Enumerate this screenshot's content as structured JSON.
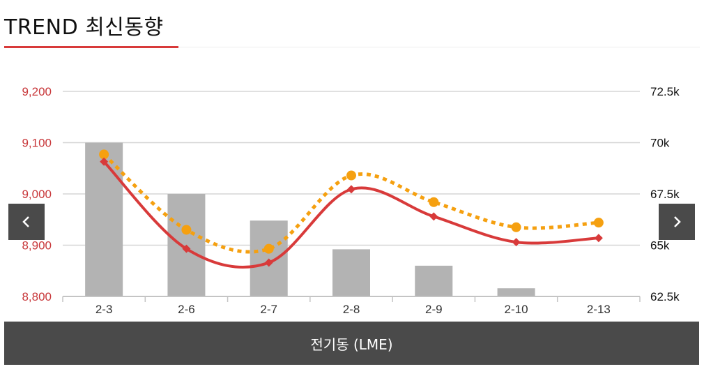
{
  "header": {
    "title": "TREND 최신동향"
  },
  "footer": {
    "label": "전기동 (LME)"
  },
  "colors": {
    "accent": "#d83a3a",
    "line_primary": "#d83a3a",
    "line_secondary": "#f5a010",
    "bar": "#b3b3b3",
    "nav": "#4a4a4a"
  },
  "icons": {
    "prev": "chevron-left-icon",
    "next": "chevron-right-icon"
  },
  "chart_data": {
    "type": "bar",
    "categories": [
      "2-3",
      "2-6",
      "2-7",
      "2-8",
      "2-9",
      "2-10",
      "2-13"
    ],
    "left_axis": {
      "ticks": [
        "9,200",
        "9,100",
        "9,000",
        "8,900",
        "8,800"
      ],
      "ylim": [
        8800,
        9200
      ]
    },
    "right_axis": {
      "ticks": [
        "72.5k",
        "70k",
        "67.5k",
        "65k",
        "62.5k"
      ],
      "ylim": [
        62500,
        72500
      ]
    },
    "series": [
      {
        "type": "bar",
        "axis": "right",
        "values": [
          70000,
          67500,
          66200,
          64800,
          64000,
          62900,
          null
        ]
      },
      {
        "type": "line",
        "axis": "left",
        "values": [
          9063,
          8893,
          8866,
          9009,
          8956,
          8906,
          8914
        ]
      },
      {
        "type": "line",
        "axis": "left",
        "dashed": true,
        "values": [
          9077,
          8930,
          8893,
          9036,
          8984,
          8935,
          8944
        ]
      }
    ],
    "grid": true
  }
}
